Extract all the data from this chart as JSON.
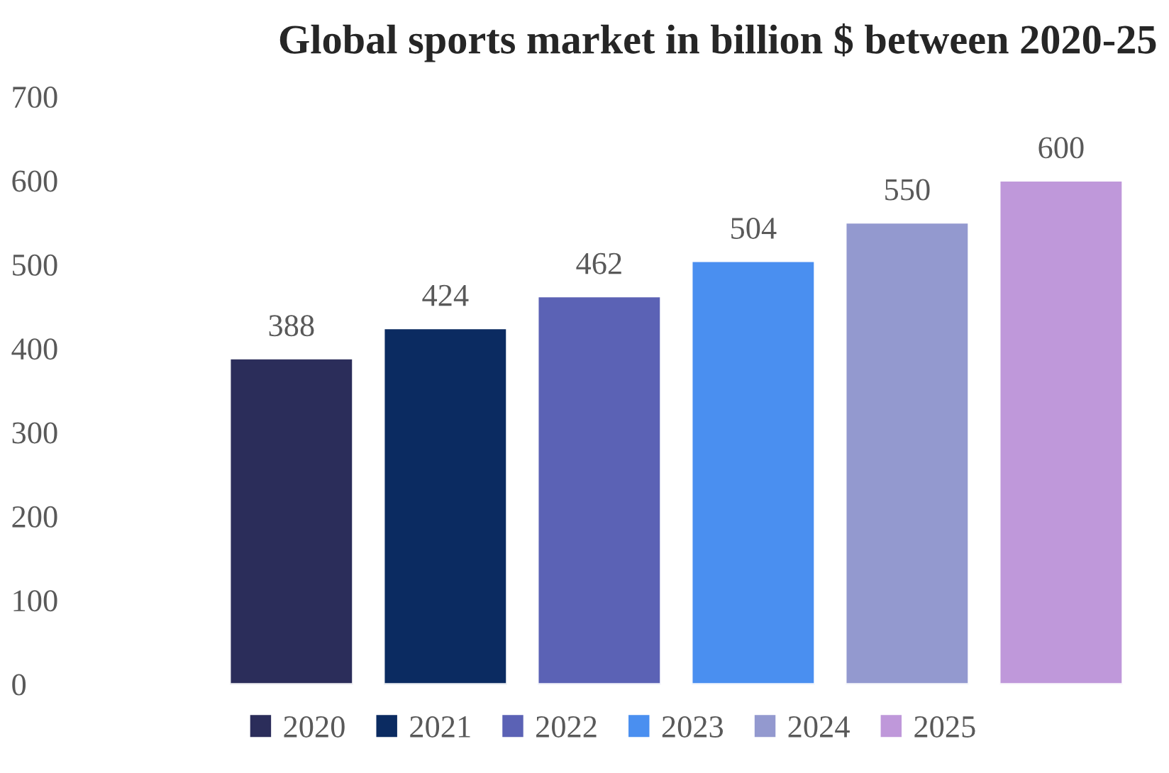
{
  "chart_data": {
    "type": "bar",
    "title": "Global sports market in billion $ between 2020-25",
    "categories": [
      null
    ],
    "series": [
      {
        "name": "2020",
        "color": "#2b2d5a",
        "values": [
          388
        ]
      },
      {
        "name": "2021",
        "color": "#0b2b61",
        "values": [
          424
        ]
      },
      {
        "name": "2022",
        "color": "#5b62b5",
        "values": [
          462
        ]
      },
      {
        "name": "2023",
        "color": "#4a8ff0",
        "values": [
          504
        ]
      },
      {
        "name": "2024",
        "color": "#9399cf",
        "values": [
          550
        ]
      },
      {
        "name": "2025",
        "color": "#bf98da",
        "values": [
          600
        ]
      }
    ],
    "ylim": [
      0,
      700
    ],
    "yticks": [
      0,
      100,
      200,
      300,
      400,
      500,
      600,
      700
    ],
    "data_labels": true,
    "grid": false,
    "legend": "bottom",
    "tick_labels": "y"
  }
}
